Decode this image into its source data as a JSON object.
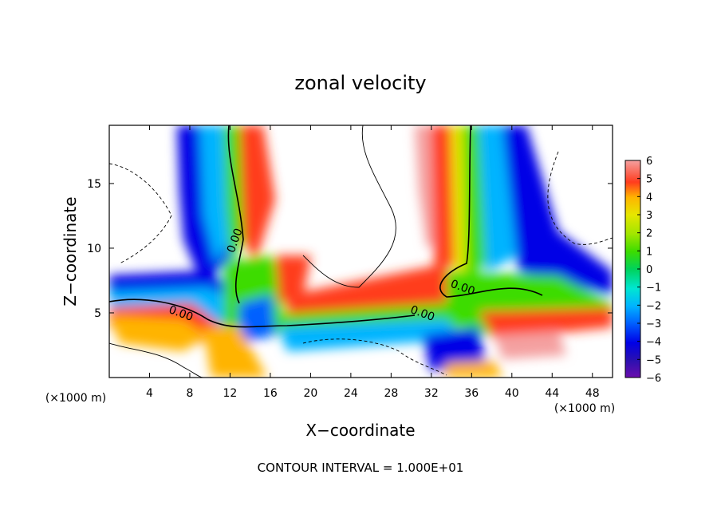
{
  "chart_data": {
    "type": "heatmap",
    "title": "zonal velocity",
    "xlabel": "X−coordinate",
    "ylabel": "Z−coordinate",
    "x_unit_left": "(×1000 m)",
    "x_unit_right": "(×1000 m)",
    "footer": "CONTOUR INTERVAL = 1.000E+01",
    "xlim": [
      0,
      50
    ],
    "ylim": [
      0,
      19.5
    ],
    "x_ticks": [
      4,
      8,
      12,
      16,
      20,
      24,
      28,
      32,
      36,
      40,
      44,
      48
    ],
    "x_tick_labels": [
      "4",
      "8",
      "12",
      "16",
      "20",
      "24",
      "28",
      "32",
      "36",
      "40",
      "44",
      "48"
    ],
    "y_ticks": [
      5,
      10,
      15
    ],
    "y_tick_labels": [
      "5",
      "10",
      "15"
    ],
    "colorbar": {
      "min": -6,
      "max": 6,
      "ticks": [
        6,
        5,
        4,
        3,
        2,
        1,
        0,
        -1,
        -2,
        -3,
        -4,
        -5,
        -6
      ],
      "tick_labels": [
        "6",
        "5",
        "4",
        "3",
        "2",
        "1",
        "0",
        "−1",
        "−2",
        "−3",
        "−4",
        "−5",
        "−6"
      ],
      "colors": [
        "#6a0dad",
        "#2a10b0",
        "#0000e6",
        "#0060ff",
        "#00b4ff",
        "#00e6d2",
        "#00d25a",
        "#3cdc00",
        "#a0e600",
        "#e6e600",
        "#ffb400",
        "#ff7800",
        "#ff1e1e",
        "#f26464",
        "#f4a0a0"
      ]
    },
    "contour_labels": [
      {
        "text": "0.00",
        "x": 12.8,
        "y": 10.5
      },
      {
        "text": "0.00",
        "x": 7.0,
        "y": 4.7
      },
      {
        "text": "0.00",
        "x": 31.0,
        "y": 4.7
      },
      {
        "text": "0.00",
        "x": 35.0,
        "y": 6.7
      }
    ]
  }
}
